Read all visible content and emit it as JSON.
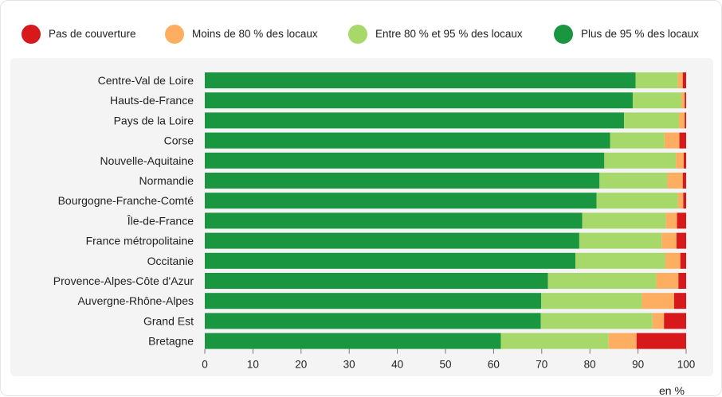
{
  "chart_data": {
    "type": "bar",
    "orientation": "horizontal",
    "stacked": true,
    "unit": "en %",
    "xlim": [
      0,
      100
    ],
    "xticks": [
      0,
      10,
      20,
      30,
      40,
      50,
      60,
      70,
      80,
      90,
      100
    ],
    "legend_position": "top",
    "categories": [
      "Centre-Val de Loire",
      "Hauts-de-France",
      "Pays de la Loire",
      "Corse",
      "Nouvelle-Aquitaine",
      "Normandie",
      "Bourgogne-Franche-Comté",
      "Île-de-France",
      "France métropolitaine",
      "Occitanie",
      "Provence-Alpes-Côte d'Azur",
      "Auvergne-Rhône-Alpes",
      "Grand Est",
      "Bretagne"
    ],
    "series": [
      {
        "name": "Plus de 95 % des locaux",
        "color": "#1a9641",
        "values": [
          89.5,
          88.9,
          87.1,
          84.2,
          83.0,
          82.0,
          81.4,
          78.4,
          77.8,
          77.0,
          71.3,
          69.9,
          69.8,
          61.5
        ]
      },
      {
        "name": "Entre 80 % et 95 % des locaux",
        "color": "#a6d96a",
        "values": [
          8.8,
          10.1,
          11.4,
          11.3,
          14.9,
          14.1,
          16.9,
          17.4,
          17.1,
          18.7,
          22.5,
          20.9,
          23.2,
          22.4
        ]
      },
      {
        "name": "Moins de 80 % des locaux",
        "color": "#fdae61",
        "values": [
          1.0,
          0.7,
          1.2,
          3.1,
          1.6,
          3.2,
          1.1,
          2.3,
          3.1,
          3.1,
          4.6,
          6.7,
          2.4,
          5.8
        ]
      },
      {
        "name": "Pas de couverture",
        "color": "#d7191c",
        "values": [
          0.7,
          0.3,
          0.3,
          1.4,
          0.5,
          0.7,
          0.6,
          1.9,
          2.0,
          1.2,
          1.6,
          2.5,
          4.6,
          10.3
        ]
      }
    ]
  },
  "legend": {
    "items": [
      {
        "label": "Pas de couverture",
        "color": "#d7191c"
      },
      {
        "label": "Moins de 80 % des locaux",
        "color": "#fdae61"
      },
      {
        "label": "Entre 80 % et 95 % des locaux",
        "color": "#a6d96a"
      },
      {
        "label": "Plus de 95 % des locaux",
        "color": "#1a9641"
      }
    ]
  }
}
